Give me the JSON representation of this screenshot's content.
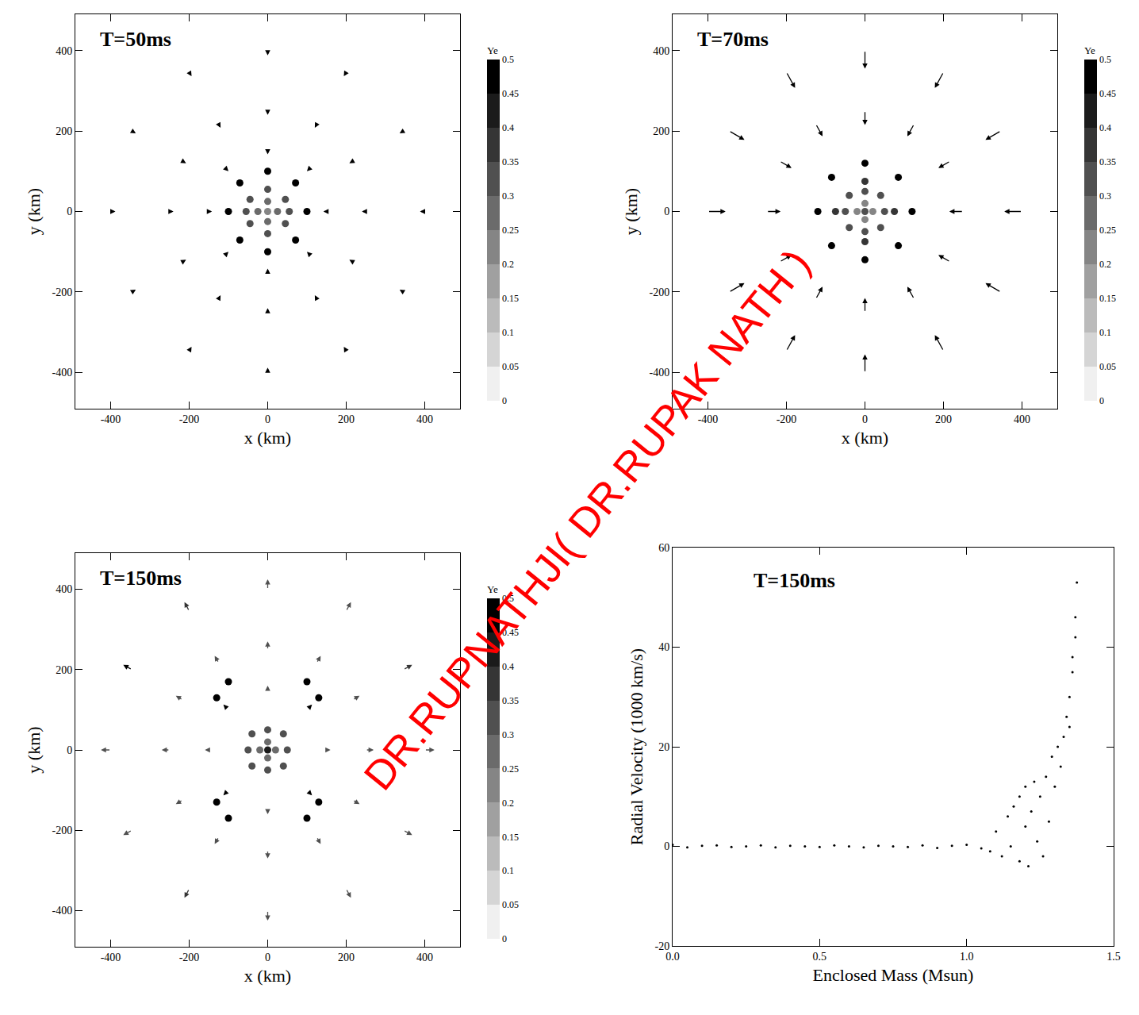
{
  "chart_data": [
    {
      "type": "vector_field",
      "title": "T=50ms",
      "x_label": "x (km)",
      "y_label": "y (km)",
      "xlim": [
        -490,
        490
      ],
      "ylim": [
        -490,
        490
      ],
      "xticks": [
        -400,
        -200,
        0,
        200,
        400
      ],
      "yticks": [
        -400,
        -200,
        0,
        200,
        400
      ],
      "grid": false,
      "colorbar": {
        "title": "Ye",
        "range": [
          0,
          0.5
        ],
        "ticks": [
          0,
          0.05,
          0.1,
          0.15,
          0.2,
          0.25,
          0.3,
          0.35,
          0.4,
          0.45,
          0.5
        ]
      },
      "arrows": {
        "x": [
          400,
          346,
          200,
          0,
          -200,
          -346,
          -400,
          -346,
          -200,
          0,
          200,
          346,
          250,
          217,
          125,
          0,
          -125,
          -217,
          -250,
          -217,
          -125,
          0,
          125,
          217,
          150,
          106,
          0,
          -106,
          -150,
          -106,
          0,
          106
        ],
        "y": [
          0,
          200,
          346,
          400,
          346,
          200,
          0,
          -200,
          -346,
          -400,
          -346,
          -200,
          0,
          125,
          217,
          250,
          217,
          125,
          0,
          -125,
          -217,
          -250,
          -217,
          -125,
          0,
          106,
          150,
          106,
          0,
          -106,
          -150,
          -106
        ],
        "u": [
          -12,
          -10,
          -6,
          0,
          6,
          10,
          12,
          10,
          6,
          0,
          -6,
          -10,
          -10,
          -9,
          -5,
          0,
          5,
          9,
          10,
          9,
          5,
          0,
          -5,
          -9,
          -8,
          -6,
          0,
          6,
          8,
          6,
          0,
          -6
        ],
        "v": [
          0,
          -6,
          -10,
          -12,
          -10,
          -6,
          0,
          6,
          10,
          12,
          10,
          6,
          0,
          -5,
          -9,
          -10,
          -9,
          -5,
          0,
          5,
          9,
          10,
          9,
          5,
          0,
          -6,
          -8,
          -6,
          0,
          6,
          8,
          6
        ],
        "ye": [
          0.5,
          0.5,
          0.5,
          0.5,
          0.5,
          0.5,
          0.5,
          0.5,
          0.5,
          0.5,
          0.5,
          0.5,
          0.5,
          0.5,
          0.5,
          0.5,
          0.5,
          0.5,
          0.5,
          0.5,
          0.5,
          0.5,
          0.5,
          0.5,
          0.5,
          0.5,
          0.5,
          0.5,
          0.5,
          0.5,
          0.5,
          0.5
        ]
      },
      "particles": {
        "x": [
          0,
          25,
          -25,
          0,
          0,
          45,
          -45,
          45,
          -45,
          55,
          -55,
          0,
          0,
          100,
          71,
          0,
          -71,
          -100,
          -71,
          0,
          71
        ],
        "y": [
          0,
          0,
          0,
          25,
          -25,
          30,
          30,
          -30,
          -30,
          0,
          0,
          55,
          -55,
          0,
          71,
          100,
          71,
          0,
          -71,
          -100,
          -71
        ],
        "ye": [
          0.2,
          0.25,
          0.25,
          0.25,
          0.25,
          0.3,
          0.3,
          0.3,
          0.3,
          0.3,
          0.3,
          0.3,
          0.3,
          0.5,
          0.5,
          0.5,
          0.5,
          0.5,
          0.5,
          0.5,
          0.5
        ]
      }
    },
    {
      "type": "vector_field",
      "title": "T=70ms",
      "x_label": "x (km)",
      "y_label": "y (km)",
      "xlim": [
        -490,
        490
      ],
      "ylim": [
        -490,
        490
      ],
      "xticks": [
        -400,
        -200,
        0,
        200,
        400
      ],
      "yticks": [
        -400,
        -200,
        0,
        200,
        400
      ],
      "grid": false,
      "colorbar": {
        "title": "Ye",
        "range": [
          0,
          0.5
        ],
        "ticks": [
          0,
          0.05,
          0.1,
          0.15,
          0.2,
          0.25,
          0.3,
          0.35,
          0.4,
          0.45,
          0.5
        ]
      },
      "arrows": {
        "x": [
          400,
          346,
          200,
          0,
          -200,
          -346,
          -400,
          -346,
          -200,
          0,
          200,
          346,
          250,
          217,
          125,
          0,
          -125,
          -217,
          -250,
          -217,
          -125,
          0,
          125,
          217,
          150,
          106,
          0,
          -106,
          -150,
          -106,
          0,
          106
        ],
        "y": [
          0,
          200,
          346,
          400,
          346,
          200,
          0,
          -200,
          -346,
          -400,
          -346,
          -200,
          0,
          125,
          217,
          250,
          217,
          125,
          0,
          -125,
          -217,
          -250,
          -217,
          -125,
          0,
          106,
          150,
          106,
          0,
          -106,
          -150,
          -106
        ],
        "u": [
          -45,
          -39,
          -22,
          0,
          22,
          39,
          45,
          39,
          22,
          0,
          -22,
          -39,
          -35,
          -30,
          -17,
          0,
          17,
          30,
          35,
          30,
          17,
          0,
          -17,
          -30,
          -6,
          -4,
          0,
          4,
          6,
          4,
          0,
          -4
        ],
        "v": [
          0,
          -22,
          -39,
          -45,
          -39,
          -22,
          0,
          22,
          39,
          45,
          39,
          22,
          0,
          -17,
          -30,
          -35,
          -30,
          -17,
          0,
          17,
          30,
          35,
          30,
          17,
          0,
          -4,
          -6,
          -4,
          0,
          4,
          6,
          4
        ],
        "ye": [
          0.5,
          0.5,
          0.5,
          0.5,
          0.5,
          0.5,
          0.5,
          0.5,
          0.5,
          0.5,
          0.5,
          0.5,
          0.5,
          0.5,
          0.5,
          0.5,
          0.5,
          0.5,
          0.5,
          0.5,
          0.5,
          0.5,
          0.5,
          0.5,
          0.5,
          0.5,
          0.5,
          0.5,
          0.5,
          0.5,
          0.5,
          0.5
        ]
      },
      "particles": {
        "x": [
          0,
          20,
          -20,
          0,
          0,
          50,
          -50,
          0,
          0,
          40,
          -40,
          40,
          -40,
          75,
          -75,
          0,
          0,
          120,
          85,
          0,
          -85,
          -120,
          -85,
          0,
          85
        ],
        "y": [
          0,
          0,
          0,
          20,
          -20,
          0,
          0,
          50,
          -50,
          40,
          40,
          -40,
          -40,
          0,
          0,
          75,
          -75,
          0,
          85,
          120,
          85,
          0,
          -85,
          -120,
          -85
        ],
        "ye": [
          0.3,
          0.2,
          0.2,
          0.2,
          0.2,
          0.3,
          0.3,
          0.3,
          0.3,
          0.3,
          0.3,
          0.3,
          0.3,
          0.35,
          0.35,
          0.35,
          0.35,
          0.5,
          0.5,
          0.5,
          0.5,
          0.5,
          0.5,
          0.5,
          0.5
        ]
      }
    },
    {
      "type": "vector_field",
      "title": "T=150ms",
      "x_label": "x (km)",
      "y_label": "y (km)",
      "xlim": [
        -490,
        490
      ],
      "ylim": [
        -490,
        490
      ],
      "xticks": [
        -400,
        -200,
        0,
        200,
        400
      ],
      "yticks": [
        -400,
        -200,
        0,
        200,
        400
      ],
      "grid": false,
      "colorbar": {
        "title": "Ye",
        "range": [
          0,
          0.5
        ],
        "ticks": [
          0,
          0.05,
          0.1,
          0.15,
          0.2,
          0.25,
          0.3,
          0.35,
          0.4,
          0.45,
          0.5
        ]
      },
      "arrows": {
        "x": [
          400,
          346,
          200,
          0,
          -200,
          -346,
          -400,
          -346,
          -200,
          0,
          200,
          346,
          250,
          217,
          125,
          0,
          -125,
          -217,
          -250,
          -217,
          -125,
          0,
          125,
          217,
          150,
          106,
          0,
          -106,
          -150,
          -106,
          0,
          106
        ],
        "y": [
          0,
          200,
          346,
          400,
          346,
          200,
          0,
          -200,
          -346,
          -400,
          -346,
          -200,
          0,
          125,
          217,
          250,
          217,
          125,
          0,
          -125,
          -217,
          -250,
          -217,
          -125,
          0,
          106,
          150,
          106,
          0,
          -106,
          -150,
          -106
        ],
        "u": [
          25,
          22,
          12,
          0,
          -12,
          -22,
          -25,
          -22,
          -12,
          0,
          12,
          22,
          20,
          17,
          10,
          0,
          -10,
          -17,
          -20,
          -17,
          -10,
          0,
          10,
          17,
          10,
          7,
          0,
          -7,
          -10,
          -7,
          0,
          7
        ],
        "v": [
          0,
          12,
          22,
          25,
          22,
          12,
          0,
          -12,
          -22,
          -25,
          -22,
          -12,
          0,
          10,
          17,
          20,
          17,
          10,
          0,
          -10,
          -17,
          -20,
          -17,
          -10,
          0,
          7,
          10,
          7,
          0,
          -7,
          -10,
          -7
        ],
        "ye": [
          0.3,
          0.35,
          0.3,
          0.3,
          0.35,
          0.5,
          0.3,
          0.3,
          0.35,
          0.3,
          0.3,
          0.3,
          0.3,
          0.3,
          0.3,
          0.3,
          0.3,
          0.3,
          0.3,
          0.3,
          0.3,
          0.3,
          0.3,
          0.3,
          0.3,
          0.5,
          0.3,
          0.5,
          0.3,
          0.5,
          0.3,
          0.5
        ]
      },
      "particles": {
        "x": [
          0,
          20,
          -20,
          0,
          0,
          50,
          -50,
          0,
          0,
          40,
          -40,
          40,
          -40,
          130,
          -130,
          130,
          -130,
          100,
          -100,
          100,
          -100
        ],
        "y": [
          0,
          0,
          0,
          20,
          -20,
          0,
          0,
          50,
          -50,
          40,
          40,
          -40,
          -40,
          130,
          130,
          -130,
          -130,
          170,
          170,
          -170,
          -170
        ],
        "ye": [
          0.4,
          0.25,
          0.25,
          0.25,
          0.25,
          0.3,
          0.3,
          0.3,
          0.3,
          0.3,
          0.3,
          0.3,
          0.3,
          0.5,
          0.5,
          0.5,
          0.5,
          0.5,
          0.5,
          0.5,
          0.5
        ]
      }
    },
    {
      "type": "scatter",
      "title": "T=150ms",
      "x_label": "Enclosed Mass (Msun)",
      "y_label": "Radial Velocity (1000 km/s)",
      "xlim": [
        0,
        1.5
      ],
      "ylim": [
        -20,
        60
      ],
      "xticks": [
        {
          "value": 0,
          "label": "0.0"
        },
        {
          "value": 0.5,
          "label": "0.5"
        },
        {
          "value": 1,
          "label": "1.0"
        },
        {
          "value": 1.5,
          "label": "1.5"
        }
      ],
      "yticks": [
        -20,
        0,
        20,
        40,
        60
      ],
      "grid": false,
      "color": "#000000",
      "marker": "dot",
      "x": [
        0,
        0.05,
        0.1,
        0.15,
        0.2,
        0.25,
        0.3,
        0.35,
        0.4,
        0.45,
        0.5,
        0.55,
        0.6,
        0.65,
        0.7,
        0.75,
        0.8,
        0.85,
        0.9,
        0.95,
        1.0,
        1.05,
        1.08,
        1.1,
        1.12,
        1.14,
        1.15,
        1.16,
        1.18,
        1.18,
        1.2,
        1.2,
        1.21,
        1.22,
        1.23,
        1.24,
        1.25,
        1.26,
        1.27,
        1.28,
        1.29,
        1.3,
        1.31,
        1.32,
        1.33,
        1.34,
        1.35,
        1.35,
        1.36,
        1.36,
        1.37,
        1.37,
        1.375
      ],
      "y": [
        0.3,
        -0.2,
        0.1,
        0.2,
        -0.1,
        0,
        0.2,
        -0.2,
        0.1,
        0,
        -0.1,
        0.2,
        0,
        -0.2,
        0.1,
        0,
        -0.1,
        0.2,
        -0.3,
        0.1,
        0.3,
        -0.4,
        -1,
        3,
        -2,
        6,
        0,
        8,
        -3,
        10,
        4,
        12,
        -4,
        7,
        13,
        1,
        10,
        -2,
        14,
        5,
        18,
        12,
        20,
        16,
        22,
        26,
        24,
        30,
        35,
        38,
        42,
        46,
        53
      ]
    }
  ],
  "watermark": {
    "text": "DR.RUPNATHJI( DR.RUPAK NATH )",
    "color": "#ff0000"
  }
}
